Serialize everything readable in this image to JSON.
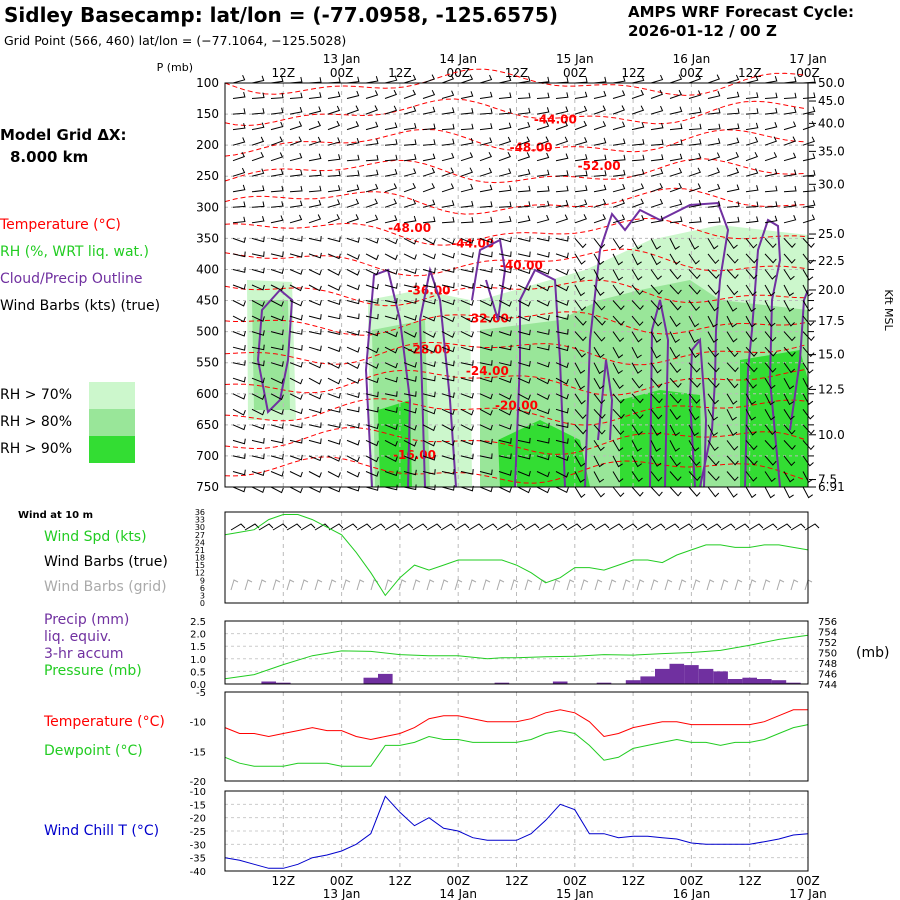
{
  "header": {
    "title": "Sidley Basecamp:  lat/lon = (-77.0958, -125.6575)",
    "subtitle": "Grid Point (566, 460) lat/lon = (−77.1064, −125.5028)",
    "cycle_label": "AMPS WRF Forecast Cycle:",
    "cycle_value": "2026-01-12 / 00  Z",
    "grid_label": "Model Grid ΔX:",
    "grid_value": "8.000 km"
  },
  "colors": {
    "temperature": "#ff0000",
    "rh": "#22cc22",
    "cloud": "#7030a0",
    "wind": "#000000",
    "wind_grid": "#aaaaaa",
    "pressure": "#22cc22",
    "dewpoint": "#22cc22",
    "windchill": "#0000cc",
    "rh70": "#ccf7cc",
    "rh80": "#99e699",
    "rh90": "#33dd33"
  },
  "legend": {
    "temperature": "Temperature (°C)",
    "rh": "RH (%, WRT liq. wat.)",
    "cloud": "Cloud/Precip Outline",
    "wind": "Wind Barbs (kts) (true)",
    "rh70": "RH > 70%",
    "rh80": "RH > 80%",
    "rh90": "RH > 90%",
    "wind10m": "Wind at 10 m",
    "wind_spd": "Wind Spd (kts)",
    "wind_barbs_true": "Wind Barbs (true)",
    "wind_barbs_grid": "Wind Barbs (grid)",
    "precip1": "Precip (mm)",
    "precip2": "liq. equiv.",
    "precip3": "3-hr accum",
    "pressure": "Pressure (mb)",
    "pressure_unit": "(mb)",
    "temp2": "Temperature (°C)",
    "dewpoint": "Dewpoint (°C)",
    "windchill": "Wind Chill T (°C)"
  },
  "chart_data": [
    {
      "type": "time-height cross section",
      "title": "Vertical profile",
      "ylabel_left": "P (mb)",
      "ylabel_right": "Kft MSL",
      "top_time_ticks": [
        "12Z",
        "00Z",
        "12Z",
        "00Z",
        "12Z",
        "00Z",
        "12Z",
        "00Z",
        "12Z",
        "00Z"
      ],
      "top_date_labels": [
        {
          "hours": 24,
          "text": "13 Jan"
        },
        {
          "hours": 48,
          "text": "14 Jan"
        },
        {
          "hours": 72,
          "text": "15 Jan"
        },
        {
          "hours": 96,
          "text": "16 Jan"
        },
        {
          "hours": 120,
          "text": "17 Jan"
        }
      ],
      "x_hours": [
        12,
        24,
        36,
        48,
        60,
        72,
        84,
        96,
        108,
        120
      ],
      "xlim": [
        0,
        120
      ],
      "pressure_levels": [
        100,
        150,
        200,
        250,
        300,
        350,
        400,
        450,
        500,
        550,
        600,
        650,
        700,
        750
      ],
      "ylim": [
        100,
        750
      ],
      "kft_ticks": [
        {
          "p": 100,
          "label": "50.0"
        },
        {
          "p": 129,
          "label": "45.0"
        },
        {
          "p": 165,
          "label": "40.0"
        },
        {
          "p": 210,
          "label": "35.0"
        },
        {
          "p": 263,
          "label": "30.0"
        },
        {
          "p": 343,
          "label": "25.0"
        },
        {
          "p": 386,
          "label": "22.5"
        },
        {
          "p": 433,
          "label": "20.0"
        },
        {
          "p": 483,
          "label": "17.5"
        },
        {
          "p": 537,
          "label": "15.0"
        },
        {
          "p": 593,
          "label": "12.5"
        },
        {
          "p": 666,
          "label": "10.0"
        },
        {
          "p": 738,
          "label": "7.5"
        },
        {
          "p": 750,
          "label": "6.91"
        }
      ],
      "temperature_labels": [
        {
          "hours": 68,
          "p": 165,
          "text": "-44.00"
        },
        {
          "hours": 63,
          "p": 210,
          "text": "-48.00"
        },
        {
          "hours": 77,
          "p": 240,
          "text": "-52.00"
        },
        {
          "hours": 38,
          "p": 340,
          "text": "-48.00"
        },
        {
          "hours": 51,
          "p": 365,
          "text": "-44.00"
        },
        {
          "hours": 61,
          "p": 400,
          "text": "-40.00"
        },
        {
          "hours": 42,
          "p": 440,
          "text": "-36.00"
        },
        {
          "hours": 54,
          "p": 485,
          "text": "-32.00"
        },
        {
          "hours": 42,
          "p": 535,
          "text": "-28.00"
        },
        {
          "hours": 54,
          "p": 570,
          "text": "-24.00"
        },
        {
          "hours": 60,
          "p": 625,
          "text": "-20.00"
        },
        {
          "hours": 39,
          "p": 705,
          "text": "-16.00"
        }
      ],
      "rh_legend": [
        "RH > 70%",
        "RH > 80%",
        "RH > 90%"
      ]
    },
    {
      "type": "line",
      "title": "Wind at 10 m",
      "series": [
        {
          "name": "Wind Spd (kts)",
          "x": [
            0,
            3,
            6,
            9,
            12,
            15,
            18,
            21,
            24,
            27,
            30,
            33,
            36,
            39,
            42,
            45,
            48,
            51,
            54,
            57,
            60,
            63,
            66,
            69,
            72,
            75,
            78,
            81,
            84,
            87,
            90,
            93,
            96,
            99,
            102,
            105,
            108,
            111,
            114,
            117,
            120
          ],
          "values": [
            27,
            28,
            29,
            33,
            35,
            35,
            33,
            30,
            27,
            20,
            12,
            3,
            10,
            15,
            13,
            15,
            17,
            17,
            17,
            17,
            15,
            12,
            8,
            10,
            14,
            14,
            13,
            15,
            17,
            17,
            16,
            19,
            21,
            23,
            23,
            22,
            22,
            23,
            23,
            22,
            21
          ]
        }
      ],
      "ylim": [
        0,
        36
      ],
      "yticks": [
        0,
        3,
        6,
        9,
        12,
        15,
        18,
        21,
        24,
        27,
        30,
        33,
        36
      ]
    },
    {
      "type": "bar+line",
      "title": "Precip / Pressure",
      "precip": {
        "name": "Precip (mm) liq. equiv. 3-hr accum",
        "x": [
          9,
          12,
          30,
          33,
          57,
          69,
          78,
          84,
          87,
          90,
          93,
          96,
          99,
          102,
          105,
          108,
          111,
          114,
          117
        ],
        "values": [
          0.1,
          0.05,
          0.25,
          0.4,
          0.05,
          0.1,
          0.05,
          0.15,
          0.3,
          0.6,
          0.8,
          0.75,
          0.6,
          0.5,
          0.2,
          0.25,
          0.2,
          0.15,
          0.05
        ]
      },
      "pressure": {
        "name": "Pressure (mb)",
        "x": [
          0,
          6,
          12,
          18,
          24,
          30,
          36,
          42,
          48,
          54,
          57,
          60,
          66,
          72,
          78,
          84,
          90,
          96,
          102,
          108,
          114,
          120
        ],
        "values": [
          745.0,
          745.8,
          747.7,
          749.4,
          750.3,
          750.2,
          749.6,
          749.4,
          749.4,
          748.8,
          749.0,
          749.0,
          749.2,
          749.3,
          749.6,
          749.5,
          749.8,
          750.0,
          750.4,
          751.4,
          752.5,
          753.3
        ]
      },
      "ylim_left": [
        0,
        2.5
      ],
      "yticks_left": [
        0.0,
        0.5,
        1.0,
        1.5,
        2.0,
        2.5
      ],
      "ylim_right": [
        744,
        756
      ],
      "yticks_right": [
        744,
        746,
        748,
        750,
        752,
        754,
        756
      ]
    },
    {
      "type": "line",
      "title": "Temperature / Dewpoint",
      "series": [
        {
          "name": "Temperature (°C)",
          "x": [
            0,
            3,
            6,
            9,
            12,
            15,
            18,
            21,
            24,
            27,
            30,
            33,
            36,
            39,
            42,
            45,
            48,
            51,
            54,
            57,
            60,
            63,
            66,
            69,
            72,
            75,
            78,
            81,
            84,
            87,
            90,
            93,
            96,
            99,
            102,
            105,
            108,
            111,
            114,
            117,
            120
          ],
          "values": [
            -11,
            -12,
            -12,
            -12.5,
            -12,
            -11.5,
            -11,
            -11.5,
            -11.5,
            -12.5,
            -13,
            -12.5,
            -12,
            -11,
            -9.5,
            -9,
            -9,
            -9.5,
            -10,
            -10,
            -10,
            -9.5,
            -8.5,
            -8,
            -8.5,
            -10,
            -12.5,
            -12,
            -11,
            -10.5,
            -10,
            -10,
            -10.5,
            -10.5,
            -10.5,
            -10.5,
            -10.5,
            -10,
            -9,
            -8,
            -8
          ]
        },
        {
          "name": "Dewpoint (°C)",
          "x": [
            0,
            3,
            6,
            9,
            12,
            15,
            18,
            21,
            24,
            27,
            30,
            33,
            36,
            39,
            42,
            45,
            48,
            51,
            54,
            57,
            60,
            63,
            66,
            69,
            72,
            75,
            78,
            81,
            84,
            87,
            90,
            93,
            96,
            99,
            102,
            105,
            108,
            111,
            114,
            117,
            120
          ],
          "values": [
            -16,
            -17,
            -17.5,
            -17.5,
            -17.5,
            -17,
            -17,
            -17,
            -17.5,
            -17.5,
            -17.5,
            -14,
            -14,
            -13.5,
            -12.5,
            -13,
            -13,
            -13.5,
            -13.5,
            -13.5,
            -13.5,
            -13,
            -12,
            -11.5,
            -12,
            -14,
            -16.5,
            -16,
            -14.5,
            -14,
            -13.5,
            -13,
            -13.5,
            -13.5,
            -14,
            -13.5,
            -13.5,
            -13,
            -12,
            -11,
            -10.5
          ]
        }
      ],
      "ylim": [
        -20,
        -5
      ],
      "yticks": [
        -20,
        -15,
        -10,
        -5
      ]
    },
    {
      "type": "line",
      "title": "Wind Chill T (°C)",
      "series": [
        {
          "name": "Wind Chill T (°C)",
          "x": [
            0,
            3,
            6,
            9,
            12,
            15,
            18,
            21,
            24,
            27,
            30,
            33,
            36,
            39,
            42,
            45,
            48,
            51,
            54,
            57,
            60,
            63,
            66,
            69,
            72,
            75,
            78,
            81,
            84,
            87,
            90,
            93,
            96,
            99,
            102,
            105,
            108,
            111,
            114,
            117,
            120
          ],
          "values": [
            -35,
            -36,
            -37.5,
            -39,
            -39,
            -37.5,
            -35,
            -34,
            -32.5,
            -30,
            -26,
            -12,
            -18,
            -23,
            -20,
            -24,
            -25,
            -27.5,
            -28.5,
            -28.5,
            -28.5,
            -26,
            -21,
            -15,
            -17,
            -26,
            -26,
            -27.5,
            -27,
            -27,
            -27.5,
            -28,
            -29.5,
            -30,
            -30,
            -30,
            -30,
            -29,
            -28,
            -26.5,
            -26
          ]
        }
      ],
      "ylim": [
        -40,
        -10
      ],
      "yticks": [
        -40,
        -35,
        -30,
        -25,
        -20,
        -15,
        -10
      ]
    }
  ],
  "bottom_axis": {
    "time_ticks": [
      "12Z",
      "00Z",
      "12Z",
      "00Z",
      "12Z",
      "00Z",
      "12Z",
      "00Z",
      "12Z",
      "00Z"
    ],
    "date_labels": [
      "13 Jan",
      "14 Jan",
      "15 Jan",
      "16 Jan",
      "17 Jan"
    ]
  }
}
